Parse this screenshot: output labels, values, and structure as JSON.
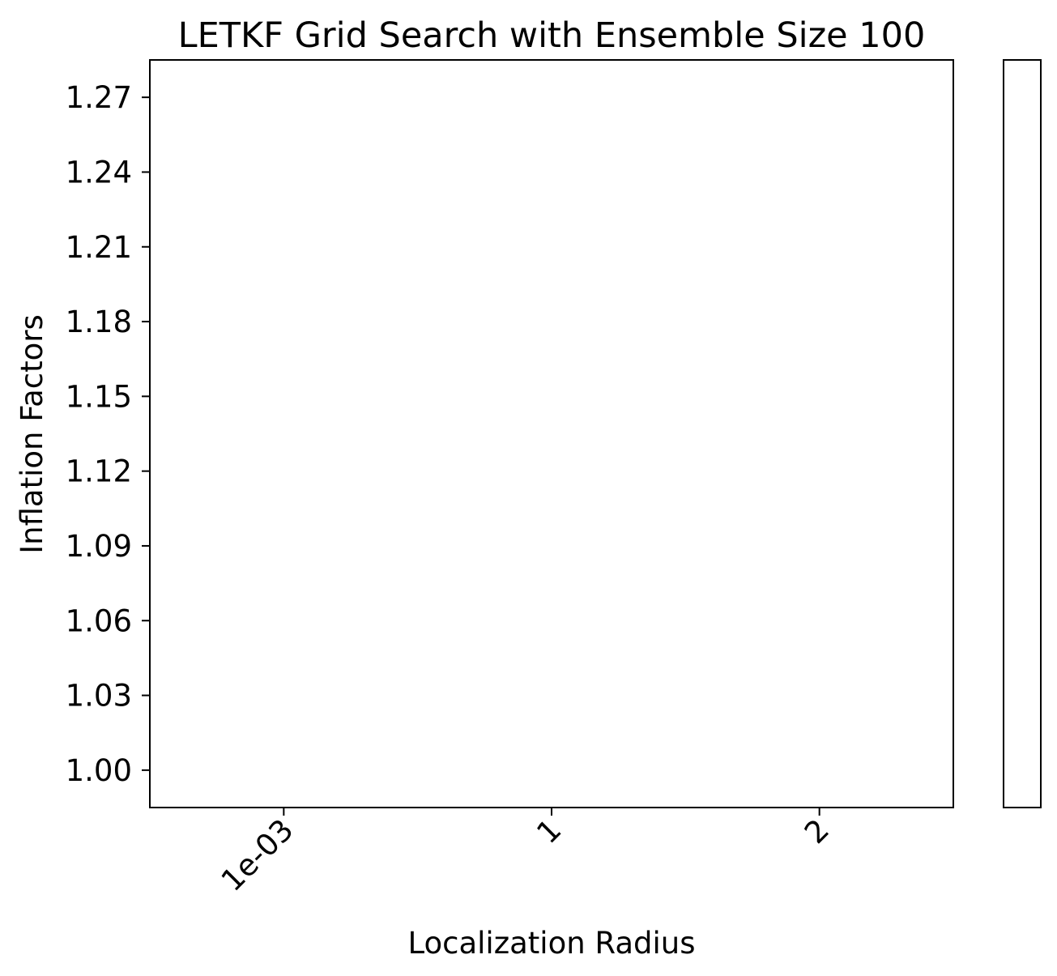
{
  "chart_data": {
    "type": "heatmap",
    "title": "LETKF Grid Search with Ensemble Size 100",
    "xlabel": "Localization Radius",
    "ylabel": "Inflation Factors",
    "x_categories": [
      "1e-03",
      "1",
      "2"
    ],
    "y_categories": [
      "1.00",
      "1.03",
      "1.06",
      "1.09",
      "1.12",
      "1.15",
      "1.18",
      "1.21",
      "1.24",
      "1.27"
    ],
    "values": [],
    "colorbar": true,
    "colorbar_ticks": [],
    "grid": false,
    "x_tick_rotation_deg": 45,
    "colors": {
      "frame": "#000000",
      "text": "#000000",
      "background": "#ffffff"
    }
  }
}
